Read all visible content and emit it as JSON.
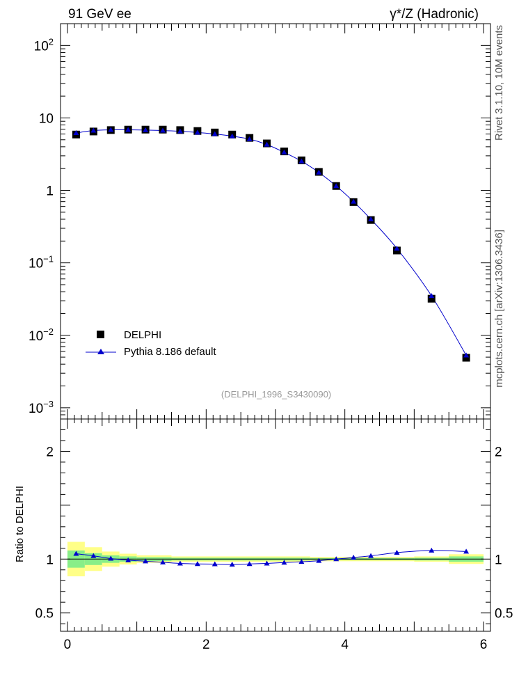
{
  "header": {
    "left": "91 GeV ee",
    "right": "γ*/Z (Hadronic)"
  },
  "side_labels": {
    "rivet": "Rivet 3.1.10,  10M events",
    "mcplots": "mcplots.cern.ch [arXiv:1306.3436]"
  },
  "analysis_id": "(DELPHI_1996_S3430090)",
  "legend": {
    "data_label": "DELPHI",
    "mc_label": "Pythia 8.186 default"
  },
  "ratio_ylabel": "Ratio to DELPHI",
  "colors": {
    "data": "#000000",
    "mc": "#0000cc",
    "band_outer": "#ffff88",
    "band_inner": "#88ee88",
    "analysis_id": "#999999"
  },
  "chart_data": [
    {
      "type": "scatter",
      "yscale": "log",
      "xlim": [
        -0.1,
        6.1
      ],
      "ylim": [
        0.0007,
        200
      ],
      "yticks": [
        {
          "value": 100,
          "base": "10",
          "exp": "2"
        },
        {
          "value": 10,
          "base": "10",
          "exp": ""
        },
        {
          "value": 1,
          "base": "1",
          "exp": ""
        },
        {
          "value": 0.1,
          "base": "10",
          "exp": "−1"
        },
        {
          "value": 0.01,
          "base": "10",
          "exp": "−2"
        },
        {
          "value": 0.001,
          "base": "10",
          "exp": "−3"
        }
      ],
      "legend_position": "lower-left",
      "series": [
        {
          "name": "DELPHI",
          "marker": "square",
          "x": [
            0.125,
            0.375,
            0.625,
            0.875,
            1.125,
            1.375,
            1.625,
            1.875,
            2.125,
            2.375,
            2.625,
            2.875,
            3.125,
            3.375,
            3.625,
            3.875,
            4.125,
            4.375,
            4.75,
            5.25,
            5.75
          ],
          "y": [
            5.9,
            6.5,
            6.8,
            6.9,
            6.9,
            6.9,
            6.8,
            6.6,
            6.3,
            5.9,
            5.3,
            4.45,
            3.45,
            2.6,
            1.8,
            1.15,
            0.69,
            0.39,
            0.148,
            0.032,
            0.0049
          ]
        },
        {
          "name": "Pythia 8.186 default",
          "marker": "triangle",
          "x": [
            0.125,
            0.375,
            0.625,
            0.875,
            1.125,
            1.375,
            1.625,
            1.875,
            2.125,
            2.375,
            2.625,
            2.875,
            3.125,
            3.375,
            3.625,
            3.875,
            4.125,
            4.375,
            4.75,
            5.25,
            5.75
          ],
          "y": [
            6.2,
            6.7,
            6.85,
            6.85,
            6.8,
            6.7,
            6.55,
            6.3,
            6.0,
            5.6,
            5.1,
            4.3,
            3.35,
            2.53,
            1.77,
            1.15,
            0.7,
            0.4,
            0.158,
            0.035,
            0.0053
          ]
        }
      ]
    },
    {
      "type": "line",
      "xlim": [
        -0.1,
        6.1
      ],
      "ylim": [
        0.33,
        2.3
      ],
      "xticks": [
        0,
        2,
        4,
        6
      ],
      "yticks": [
        0.5,
        1,
        2
      ],
      "ylabel": "Ratio to DELPHI",
      "bands": [
        {
          "x0": 0.0,
          "x1": 0.25,
          "outer": 0.16,
          "inner": 0.08
        },
        {
          "x0": 0.25,
          "x1": 0.5,
          "outer": 0.11,
          "inner": 0.055
        },
        {
          "x0": 0.5,
          "x1": 0.75,
          "outer": 0.07,
          "inner": 0.035
        },
        {
          "x0": 0.75,
          "x1": 1.0,
          "outer": 0.05,
          "inner": 0.025
        },
        {
          "x0": 1.0,
          "x1": 1.5,
          "outer": 0.035,
          "inner": 0.018
        },
        {
          "x0": 1.5,
          "x1": 3.5,
          "outer": 0.025,
          "inner": 0.013
        },
        {
          "x0": 3.5,
          "x1": 4.5,
          "outer": 0.02,
          "inner": 0.01
        },
        {
          "x0": 4.5,
          "x1": 5.0,
          "outer": 0.02,
          "inner": 0.01
        },
        {
          "x0": 5.0,
          "x1": 5.5,
          "outer": 0.025,
          "inner": 0.013
        },
        {
          "x0": 5.5,
          "x1": 6.0,
          "outer": 0.045,
          "inner": 0.025
        }
      ],
      "series": [
        {
          "name": "Pythia 8.186 default",
          "x": [
            0.125,
            0.375,
            0.625,
            0.875,
            1.125,
            1.375,
            1.625,
            1.875,
            2.125,
            2.375,
            2.625,
            2.875,
            3.125,
            3.375,
            3.625,
            3.875,
            4.125,
            4.375,
            4.75,
            5.25,
            5.75
          ],
          "y": [
            1.05,
            1.03,
            1.005,
            0.99,
            0.98,
            0.97,
            0.96,
            0.955,
            0.953,
            0.95,
            0.955,
            0.96,
            0.968,
            0.975,
            0.985,
            1.0,
            1.015,
            1.03,
            1.06,
            1.08,
            1.07
          ]
        }
      ]
    }
  ]
}
